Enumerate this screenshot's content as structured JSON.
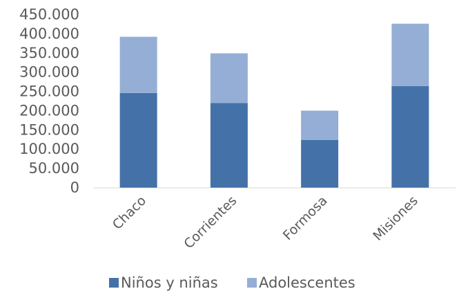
{
  "chart_data": {
    "type": "bar",
    "stacked": true,
    "categories": [
      "Chaco",
      "Corrientes",
      "Formosa",
      "Misiones"
    ],
    "series": [
      {
        "name": "Niños y niñas",
        "values": [
          246000,
          220000,
          124000,
          264000
        ],
        "color": "#4472a8"
      },
      {
        "name": "Adolescentes",
        "values": [
          146000,
          129000,
          76000,
          162000
        ],
        "color": "#95aed6"
      }
    ],
    "ylim": [
      0,
      450000
    ],
    "yticks": [
      0,
      50000,
      100000,
      150000,
      200000,
      250000,
      300000,
      350000,
      400000,
      450000
    ],
    "ytick_labels": [
      "0",
      "50.000",
      "100.000",
      "150.000",
      "200.000",
      "250.000",
      "300.000",
      "350.000",
      "400.000",
      "450.000"
    ],
    "grid": false,
    "legend_position": "bottom"
  }
}
